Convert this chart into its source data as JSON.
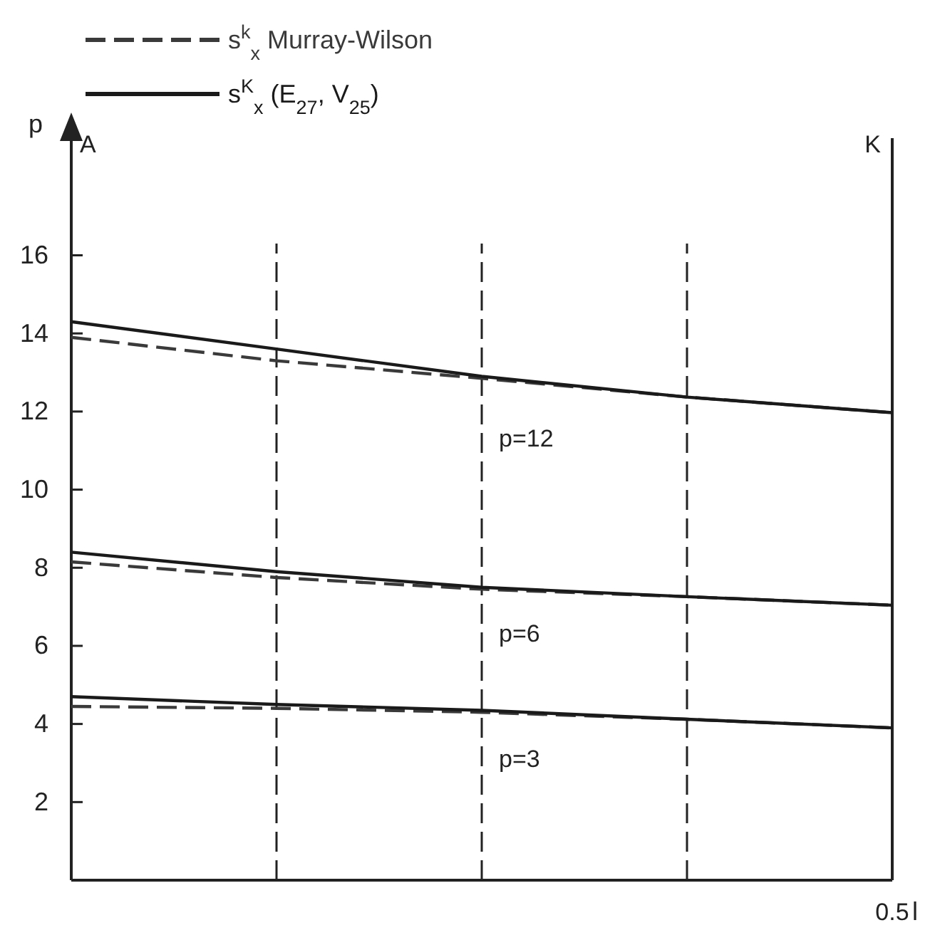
{
  "chart_data": {
    "type": "line",
    "xlabel": "l",
    "ylabel": "p",
    "categories": [
      null,
      null,
      null,
      null,
      null
    ],
    "ylim": [
      0,
      19
    ],
    "yticks": [
      2,
      4,
      6,
      8,
      10,
      12,
      14,
      16
    ],
    "grid": "x",
    "legend": "top left",
    "marker": "none",
    "series": [
      {
        "name": "s$^{k}$$_{x}$ Murray-Wilson",
        "color": "#3a3a3a",
        "line_style": "dashed",
        "values": [
          13.9,
          13.3,
          12.85,
          12.37,
          11.97
        ]
      },
      {
        "name": "s$^{K}$$_{x}$ (E$_{27}$, V$_{25}$)",
        "color": "#1a1a1a",
        "line_style": "solid",
        "values": [
          14.3,
          13.6,
          12.9,
          12.37,
          11.97
        ]
      },
      {
        "color": "#3a3a3a",
        "line_style": "dashed",
        "values": [
          8.15,
          7.75,
          7.45,
          7.26,
          7.04
        ]
      },
      {
        "color": "#1a1a1a",
        "line_style": "solid",
        "values": [
          8.4,
          7.9,
          7.5,
          7.26,
          7.04
        ]
      },
      {
        "color": "#3a3a3a",
        "line_style": "dashed",
        "values": [
          4.45,
          4.4,
          4.3,
          4.12,
          3.9
        ]
      },
      {
        "color": "#1a1a1a",
        "line_style": "solid",
        "values": [
          4.7,
          4.5,
          4.35,
          4.12,
          3.9
        ]
      }
    ],
    "annotations": [
      "A",
      "K",
      "0.5",
      "p=12",
      "p=6",
      "p=3"
    ]
  }
}
